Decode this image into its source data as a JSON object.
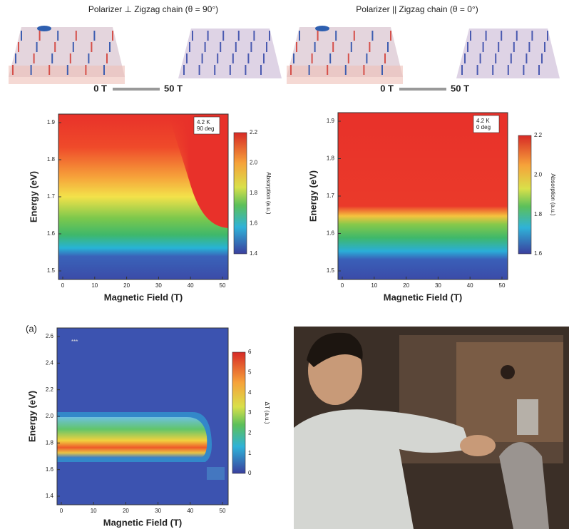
{
  "header": {
    "title_left": "Polarizer ⊥ Zigzag chain  (θ = 90°)",
    "title_right": "Polarizer || Zigzag chain  (θ = 0°)",
    "field_left": [
      "0 T",
      "50 T"
    ],
    "field_right": [
      "0 T",
      "50 T"
    ]
  },
  "panels": [
    {
      "inset": [
        "4.2 K",
        "90 deg"
      ],
      "y_label": "Energy (eV)",
      "x_label": "Magnetic Field (T)",
      "y_ticks": [
        "1.9",
        "1.8",
        "1.7",
        "1.6",
        "1.5"
      ],
      "x_ticks": [
        "0",
        "10",
        "20",
        "30",
        "40",
        "50"
      ],
      "colorbar_ticks": [
        "2.2",
        "2.0",
        "1.8",
        "1.6",
        "1.4"
      ],
      "colorbar_label": "Absorption (a.u.)"
    },
    {
      "inset": [
        "4.2 K",
        "0 deg"
      ],
      "y_label": "Energy (eV)",
      "x_label": "Magnetic Field (T)",
      "y_ticks": [
        "1.9",
        "1.8",
        "1.7",
        "1.6",
        "1.5"
      ],
      "x_ticks": [
        "0",
        "10",
        "20",
        "30",
        "40",
        "50"
      ],
      "colorbar_ticks": [
        "2.2",
        "2.0",
        "1.8",
        "1.6"
      ],
      "colorbar_label": "Absorption (a.u.)"
    },
    {
      "panel_label": "(a)",
      "inset": [
        "***"
      ],
      "y_label": "Energy (eV)",
      "x_label": "Magnetic Field (T)",
      "y_ticks": [
        "2.6",
        "2.4",
        "2.2",
        "2.0",
        "1.8",
        "1.6",
        "1.4"
      ],
      "x_ticks": [
        "0",
        "10",
        "20",
        "30",
        "40",
        "50"
      ],
      "colorbar_ticks": [
        "6",
        "5",
        "4",
        "3",
        "2",
        "1",
        "0"
      ],
      "colorbar_label": "ΔT (a.u.)"
    }
  ]
}
